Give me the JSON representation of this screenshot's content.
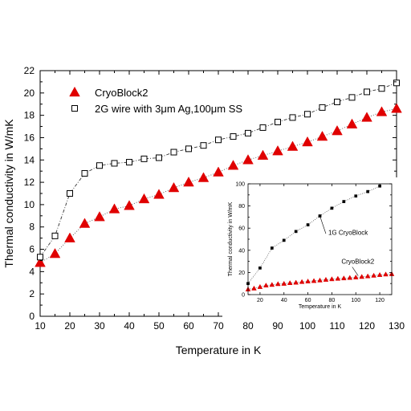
{
  "chart_data": [
    {
      "type": "scatter",
      "xlabel": "Temperature in K",
      "ylabel": "Thermal conductivity in W/mK",
      "xlim": [
        10,
        130
      ],
      "ylim": [
        0,
        22
      ],
      "xticks": [
        10,
        20,
        30,
        40,
        50,
        60,
        70,
        80,
        90,
        100,
        110,
        120,
        130
      ],
      "yticks": [
        0,
        2,
        4,
        6,
        8,
        10,
        12,
        14,
        16,
        18,
        20,
        22
      ],
      "legend_position": "top-left",
      "series": [
        {
          "name": "CryoBlock2",
          "marker": "filled-triangle",
          "color": "#e00000",
          "line": "dotted",
          "x": [
            10,
            15,
            20,
            25,
            30,
            35,
            40,
            45,
            50,
            55,
            60,
            65,
            70,
            75,
            80,
            85,
            90,
            95,
            100,
            105,
            110,
            115,
            120,
            125,
            130
          ],
          "y": [
            4.8,
            5.6,
            7.0,
            8.3,
            8.9,
            9.6,
            9.9,
            10.5,
            10.9,
            11.5,
            12.0,
            12.4,
            12.9,
            13.5,
            14.0,
            14.4,
            14.8,
            15.2,
            15.6,
            16.1,
            16.6,
            17.2,
            17.8,
            18.3,
            18.6
          ]
        },
        {
          "name": "2G wire with 3μm Ag,100μm SS",
          "marker": "open-square",
          "color": "#000000",
          "line": "dashdot",
          "x": [
            10,
            15,
            20,
            25,
            30,
            35,
            40,
            45,
            50,
            55,
            60,
            65,
            70,
            75,
            80,
            85,
            90,
            95,
            100,
            105,
            110,
            115,
            120,
            125,
            130
          ],
          "y": [
            5.3,
            7.2,
            11.0,
            12.8,
            13.5,
            13.7,
            13.8,
            14.1,
            14.2,
            14.7,
            15.0,
            15.3,
            15.8,
            16.1,
            16.4,
            16.9,
            17.4,
            17.8,
            18.1,
            18.7,
            19.2,
            19.6,
            20.1,
            20.4,
            20.9
          ]
        }
      ]
    },
    {
      "type": "scatter",
      "placement": "inset-lower-right",
      "xlabel": "Temperature in K",
      "ylabel": "Thermal conductivity in W/mK",
      "xlim": [
        10,
        130
      ],
      "ylim": [
        0,
        100
      ],
      "xticks": [
        20,
        40,
        60,
        80,
        100,
        120
      ],
      "yticks": [
        0,
        10,
        20,
        30,
        40,
        50,
        60,
        70,
        80,
        90,
        100
      ],
      "yticks_labeled": [
        0,
        20,
        40,
        60,
        80,
        100
      ],
      "series": [
        {
          "name": "1G CryoBlock",
          "marker": "filled-square",
          "color": "#000000",
          "line": "dotted",
          "x": [
            10,
            20,
            30,
            40,
            50,
            60,
            70,
            80,
            90,
            100,
            110,
            120
          ],
          "y": [
            10,
            24,
            42,
            49,
            57,
            63,
            71,
            78,
            84,
            89,
            93,
            98
          ]
        },
        {
          "name": "CryoBlock2",
          "marker": "filled-triangle",
          "color": "#e00000",
          "line": "dotted",
          "x": [
            10,
            15,
            20,
            25,
            30,
            35,
            40,
            45,
            50,
            55,
            60,
            65,
            70,
            75,
            80,
            85,
            90,
            95,
            100,
            105,
            110,
            115,
            120,
            125,
            130
          ],
          "y": [
            4.8,
            5.6,
            7.0,
            8.3,
            8.9,
            9.6,
            9.9,
            10.5,
            10.9,
            11.5,
            12.0,
            12.4,
            12.9,
            13.5,
            14.0,
            14.4,
            14.8,
            15.2,
            15.6,
            16.1,
            16.6,
            17.2,
            17.8,
            18.3,
            18.6
          ]
        }
      ]
    }
  ]
}
